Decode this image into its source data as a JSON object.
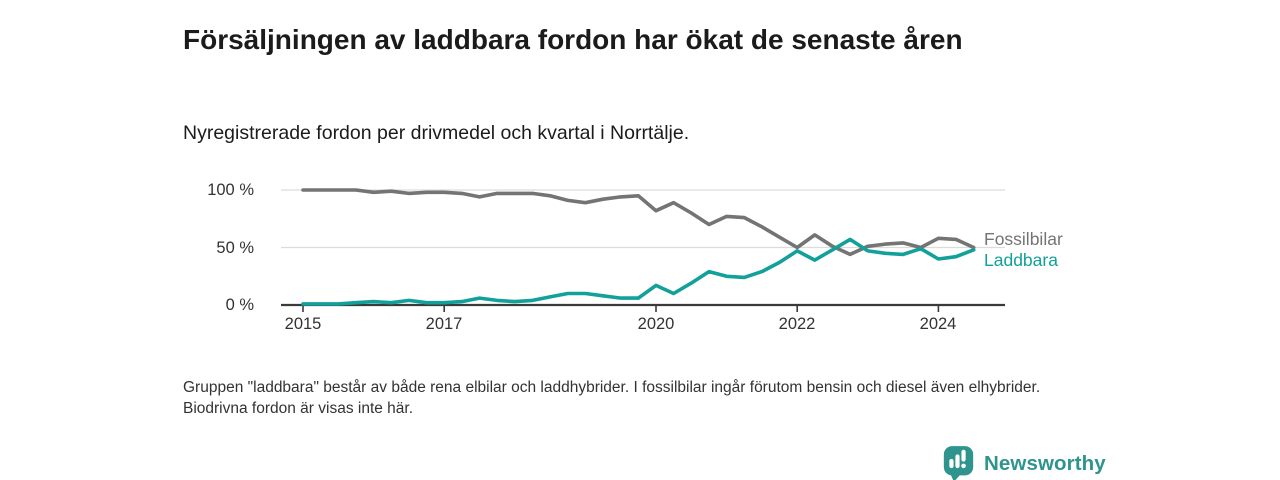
{
  "chart_data": {
    "type": "line",
    "title": "Försäljningen av laddbara fordon har ökat de senaste åren",
    "subtitle": "Nyregistrerade fordon per drivmedel och kvartal i Norrtälje.",
    "x_unit": "quarter",
    "quarters": [
      "2015 Q1",
      "2015 Q2",
      "2015 Q3",
      "2015 Q4",
      "2016 Q1",
      "2016 Q2",
      "2016 Q3",
      "2016 Q4",
      "2017 Q1",
      "2017 Q2",
      "2017 Q3",
      "2017 Q4",
      "2018 Q1",
      "2018 Q2",
      "2018 Q3",
      "2018 Q4",
      "2019 Q1",
      "2019 Q2",
      "2019 Q3",
      "2019 Q4",
      "2020 Q1",
      "2020 Q2",
      "2020 Q3",
      "2020 Q4",
      "2021 Q1",
      "2021 Q2",
      "2021 Q3",
      "2021 Q4",
      "2022 Q1",
      "2022 Q2",
      "2022 Q3",
      "2022 Q4",
      "2023 Q1",
      "2023 Q2",
      "2023 Q3",
      "2023 Q4",
      "2024 Q1",
      "2024 Q2",
      "2024 Q3"
    ],
    "series": [
      {
        "name": "Fossilbilar",
        "color": "#747474",
        "values": [
          100,
          100,
          100,
          100,
          98,
          99,
          97,
          98,
          98,
          97,
          94,
          97,
          97,
          97,
          95,
          91,
          89,
          92,
          94,
          95,
          82,
          89,
          80,
          70,
          77,
          76,
          68,
          59,
          50,
          61,
          51,
          44,
          51,
          53,
          54,
          50,
          58,
          57,
          50
        ]
      },
      {
        "name": "Laddbara",
        "color": "#12a19a",
        "values": [
          1,
          1,
          1,
          2,
          3,
          2,
          4,
          2,
          2,
          3,
          6,
          4,
          3,
          4,
          7,
          10,
          10,
          8,
          6,
          6,
          17,
          10,
          19,
          29,
          25,
          24,
          29,
          37,
          47,
          39,
          48,
          57,
          47,
          45,
          44,
          49,
          40,
          42,
          48
        ]
      }
    ],
    "ylim": [
      0,
      100
    ],
    "yticks": [
      {
        "value": 100,
        "label": "100 %"
      },
      {
        "value": 50,
        "label": "50 %"
      },
      {
        "value": 0,
        "label": "0 %"
      }
    ],
    "xticks": [
      {
        "index": 0,
        "label": "2015"
      },
      {
        "index": 8,
        "label": "2017"
      },
      {
        "index": 20,
        "label": "2020"
      },
      {
        "index": 28,
        "label": "2022"
      },
      {
        "index": 36,
        "label": "2024"
      }
    ],
    "grid": "horizontal",
    "legend_position": "right-of-line-ends"
  },
  "footnote": "Gruppen \"laddbara\" består av både rena elbilar och laddhybrider. I fossilbilar ingår förutom bensin och diesel även elhybrider. Biodrivna fordon är visas inte här.",
  "branding": {
    "name": "Newsworthy",
    "icon": "newsworthy-chart-bubble-icon",
    "color": "#2f948e"
  }
}
